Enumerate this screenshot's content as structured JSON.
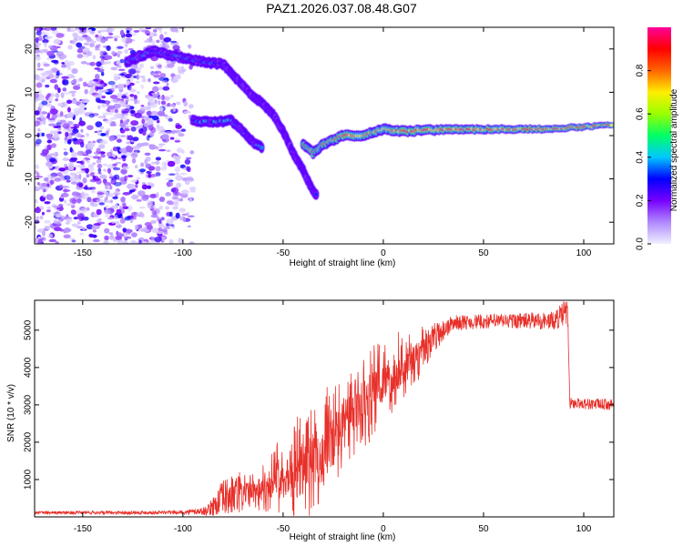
{
  "title": "PAZ1.2026.037.08.48.G07",
  "chart_data": [
    {
      "type": "heatmap",
      "name": "spectrogram",
      "xlabel": "Height of straight line (km)",
      "ylabel": "Frequency (Hz)",
      "xlim": [
        -174,
        115
      ],
      "ylim": [
        -25,
        25
      ],
      "xticks": [
        -150,
        -100,
        -50,
        0,
        50,
        100
      ],
      "xtick_labels": [
        "-150",
        "-100",
        "-50",
        "0",
        "50",
        "100"
      ],
      "yticks": [
        -20,
        -10,
        0,
        10,
        20
      ],
      "ytick_labels": [
        "-20",
        "-10",
        "0",
        "10",
        "20"
      ],
      "colorbar": {
        "label": "Normalized spectral amplitude",
        "range": [
          0,
          1
        ],
        "ticks": [
          0,
          0.2,
          0.4,
          0.6,
          0.8
        ],
        "tick_labels": [
          "0.0",
          "0.2",
          "0.4",
          "0.6",
          "0.8"
        ],
        "colors": [
          "#f0f0ff",
          "#b088ff",
          "#7700ff",
          "#0000ff",
          "#00c8ff",
          "#00ff66",
          "#99ff00",
          "#ffee00",
          "#ff6600",
          "#ff0000",
          "#ff0099"
        ]
      },
      "noise_region": {
        "x": [
          -174,
          -95
        ],
        "y": [
          -25,
          25
        ]
      },
      "tracks": [
        {
          "name": "upper-branch",
          "points": [
            [
              -128,
              17
            ],
            [
              -115,
              19.5
            ],
            [
              -100,
              18
            ],
            [
              -90,
              17
            ],
            [
              -80,
              16.5
            ],
            [
              -73,
              13
            ],
            [
              -68,
              10.5
            ],
            [
              -62,
              8
            ],
            [
              -55,
              5
            ],
            [
              -50,
              1
            ],
            [
              -45,
              -4
            ],
            [
              -40,
              -8
            ],
            [
              -36,
              -12
            ],
            [
              -33,
              -14
            ]
          ],
          "amplitude": 0.3
        },
        {
          "name": "lower-branch",
          "points": [
            [
              -95,
              3.5
            ],
            [
              -85,
              3
            ],
            [
              -76,
              3.5
            ],
            [
              -70,
              1
            ],
            [
              -65,
              -1.5
            ],
            [
              -60,
              -3
            ]
          ],
          "amplitude": 0.35
        },
        {
          "name": "main-branch",
          "points": [
            [
              -40,
              -2
            ],
            [
              -35,
              -4
            ],
            [
              -30,
              -2
            ],
            [
              -20,
              0
            ],
            [
              -10,
              0
            ],
            [
              0,
              1.5
            ],
            [
              10,
              1
            ],
            [
              20,
              1.2
            ],
            [
              40,
              1.5
            ],
            [
              60,
              1.5
            ],
            [
              80,
              1.5
            ],
            [
              100,
              2
            ],
            [
              115,
              2.5
            ]
          ],
          "amplitude": 0.8
        }
      ]
    },
    {
      "type": "line",
      "name": "snr",
      "xlabel": "Height of straight line (km)",
      "ylabel": "SNR (10 * v/v)",
      "xlim": [
        -174,
        115
      ],
      "ylim": [
        0,
        5800
      ],
      "xticks": [
        -150,
        -100,
        -50,
        0,
        50,
        100
      ],
      "xtick_labels": [
        "-150",
        "-100",
        "-50",
        "0",
        "50",
        "100"
      ],
      "yticks": [
        1000,
        2000,
        3000,
        4000,
        5000
      ],
      "ytick_labels": [
        "1000",
        "2000",
        "3000",
        "4000",
        "5000"
      ],
      "color": "#e8302a",
      "envelope": [
        {
          "x": -174,
          "base": 110,
          "jitter": 40
        },
        {
          "x": -100,
          "base": 120,
          "jitter": 50
        },
        {
          "x": -88,
          "base": 160,
          "jitter": 120
        },
        {
          "x": -80,
          "base": 500,
          "jitter": 500
        },
        {
          "x": -60,
          "base": 800,
          "jitter": 700
        },
        {
          "x": -45,
          "base": 1300,
          "jitter": 1300
        },
        {
          "x": -30,
          "base": 1700,
          "jitter": 1700
        },
        {
          "x": -15,
          "base": 2800,
          "jitter": 1400
        },
        {
          "x": 0,
          "base": 3600,
          "jitter": 1200
        },
        {
          "x": 15,
          "base": 4200,
          "jitter": 900
        },
        {
          "x": 25,
          "base": 4800,
          "jitter": 400
        },
        {
          "x": 35,
          "base": 5200,
          "jitter": 200
        },
        {
          "x": 60,
          "base": 5250,
          "jitter": 200
        },
        {
          "x": 85,
          "base": 5250,
          "jitter": 250
        },
        {
          "x": 92,
          "base": 5500,
          "jitter": 400
        },
        {
          "x": 93,
          "base": 3050,
          "jitter": 150
        },
        {
          "x": 115,
          "base": 3000,
          "jitter": 150
        }
      ]
    }
  ]
}
